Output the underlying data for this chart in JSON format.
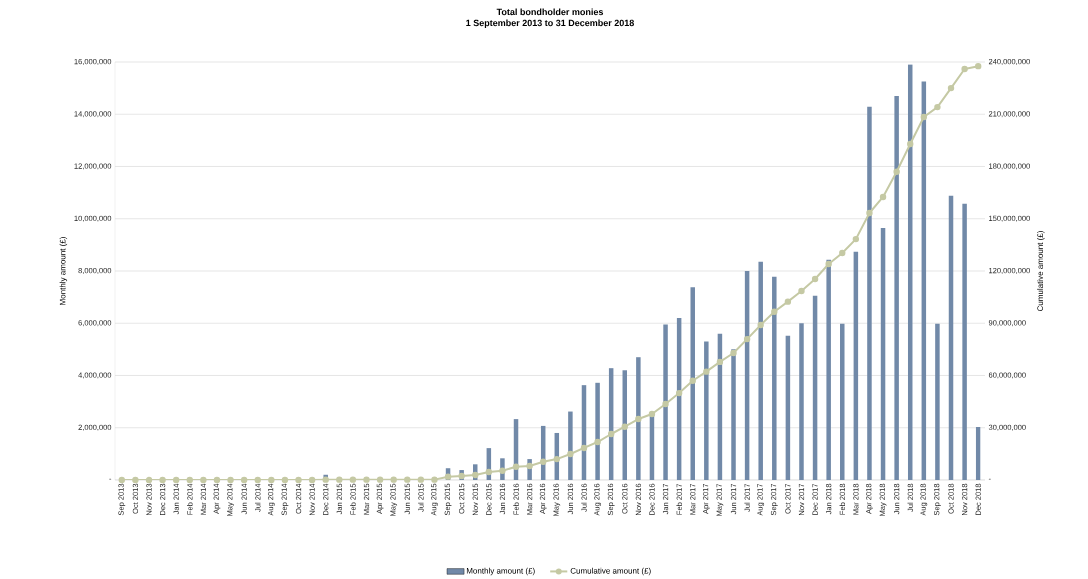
{
  "chart_data": {
    "type": "bar",
    "title": "Total bondholder monies",
    "subtitle": "1 September 2013 to 31 December 2018",
    "ylabel": "Monthly amount (£)",
    "y2label": "Cumulative amount (£)",
    "categories": [
      "Sep 2013",
      "Oct 2013",
      "Nov 2013",
      "Dec 2013",
      "Jan 2014",
      "Feb 2014",
      "Mar 2014",
      "Apr 2014",
      "May 2014",
      "Jun 2014",
      "Jul 2014",
      "Aug 2014",
      "Sep 2014",
      "Oct 2014",
      "Nov 2014",
      "Dec 2014",
      "Jan 2015",
      "Feb 2015",
      "Mar 2015",
      "Apr 2015",
      "May 2015",
      "Jun 2015",
      "Jul 2015",
      "Aug 2015",
      "Sep 2015",
      "Oct 2015",
      "Nov 2015",
      "Dec 2015",
      "Jan 2016",
      "Feb 2016",
      "Mar 2016",
      "Apr 2016",
      "May 2016",
      "Jun 2016",
      "Jul 2016",
      "Aug 2016",
      "Sep 2016",
      "Oct 2016",
      "Nov 2016",
      "Dec 2016",
      "Jan 2017",
      "Feb 2017",
      "Mar 2017",
      "Apr 2017",
      "May 2017",
      "Jun 2017",
      "Jul 2017",
      "Aug 2017",
      "Sep 2017",
      "Oct 2017",
      "Nov 2017",
      "Dec 2017",
      "Jan 2018",
      "Feb 2018",
      "Mar 2018",
      "Apr 2018",
      "May 2018",
      "Jun 2018",
      "Jul 2018",
      "Aug 2018",
      "Sep 2018",
      "Oct 2018",
      "Nov 2018",
      "Dec 2018"
    ],
    "series": [
      {
        "name": "Monthly amount (£)",
        "color": "#7189a8",
        "values": [
          0,
          0,
          0,
          0,
          0,
          0,
          0,
          0,
          0,
          0,
          0,
          0,
          0,
          0,
          0,
          200000,
          0,
          0,
          0,
          0,
          0,
          0,
          0,
          0,
          450000,
          380000,
          600000,
          1220000,
          830000,
          2330000,
          800000,
          2070000,
          1800000,
          2620000,
          3630000,
          3720000,
          4280000,
          4200000,
          4700000,
          2500000,
          5950000,
          6200000,
          7380000,
          5300000,
          5600000,
          5000000,
          8000000,
          8350000,
          7780000,
          5520000,
          6000000,
          7050000,
          8430000,
          5980000,
          8740000,
          14290000,
          9650000,
          14700000,
          15900000,
          15250000,
          5980000,
          10880000,
          10570000,
          2030000
        ]
      },
      {
        "name": "Cumulative amount (£)",
        "type": "line",
        "axis": "y2",
        "color": "#c5c9a4",
        "marker": "circle",
        "values": [
          0,
          0,
          0,
          0,
          0,
          0,
          0,
          0,
          0,
          0,
          0,
          0,
          0,
          0,
          0,
          200000,
          200000,
          200000,
          200000,
          200000,
          200000,
          200000,
          200000,
          200000,
          1900000,
          2300000,
          2900000,
          4600000,
          5300000,
          7600000,
          8000000,
          10500000,
          12000000,
          14900000,
          18400000,
          21800000,
          26400000,
          30600000,
          35000000,
          37900000,
          43600000,
          49900000,
          57000000,
          62200000,
          67800000,
          72900000,
          80900000,
          89000000,
          96600000,
          102400000,
          108500000,
          115400000,
          124000000,
          130300000,
          138300000,
          153300000,
          162500000,
          177000000,
          192900000,
          208400000,
          214100000,
          225000000,
          236000000,
          237600000
        ]
      }
    ],
    "ylim": [
      0,
      16000000
    ],
    "yticks": [
      {
        "value": 0,
        "label": "-"
      },
      {
        "value": 2000000,
        "label": "2,000,000"
      },
      {
        "value": 4000000,
        "label": "4,000,000"
      },
      {
        "value": 6000000,
        "label": "6,000,000"
      },
      {
        "value": 8000000,
        "label": "8,000,000"
      },
      {
        "value": 10000000,
        "label": "10,000,000"
      },
      {
        "value": 12000000,
        "label": "12,000,000"
      },
      {
        "value": 14000000,
        "label": "14,000,000"
      },
      {
        "value": 16000000,
        "label": "16,000,000"
      }
    ],
    "y2lim": [
      0,
      240000000
    ],
    "y2ticks": [
      {
        "value": 0,
        "label": "-"
      },
      {
        "value": 30000000,
        "label": "30,000,000"
      },
      {
        "value": 60000000,
        "label": "60,000,000"
      },
      {
        "value": 90000000,
        "label": "90,000,000"
      },
      {
        "value": 120000000,
        "label": "120,000,000"
      },
      {
        "value": 150000000,
        "label": "150,000,000"
      },
      {
        "value": 180000000,
        "label": "180,000,000"
      },
      {
        "value": 210000000,
        "label": "210,000,000"
      },
      {
        "value": 240000000,
        "label": "240,000,000"
      }
    ],
    "grid": "y",
    "legend": "bottom"
  }
}
